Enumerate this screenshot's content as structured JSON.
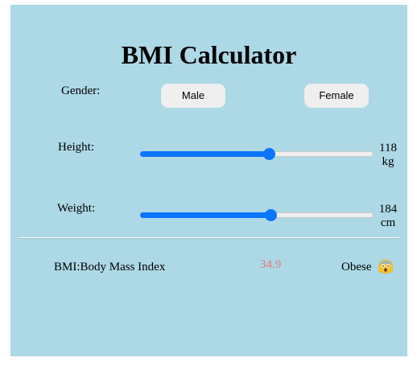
{
  "app": {
    "title": "BMI Calculator"
  },
  "gender": {
    "label": "Gender:",
    "options": [
      "Male",
      "Female"
    ]
  },
  "height": {
    "label": "Height:",
    "value": "118",
    "unit": "kg",
    "level": 0.55
  },
  "weight": {
    "label": "Weight:",
    "value": "184",
    "unit": "cm",
    "level": 0.56
  },
  "result": {
    "label": "BMI:Body Mass Index",
    "value": "34.9",
    "category": "Obese",
    "emoji": "shocked-face-icon"
  },
  "colors": {
    "panel": "#add8e6",
    "accent": "#0a75ff",
    "bmi_value": "#e8747a"
  }
}
